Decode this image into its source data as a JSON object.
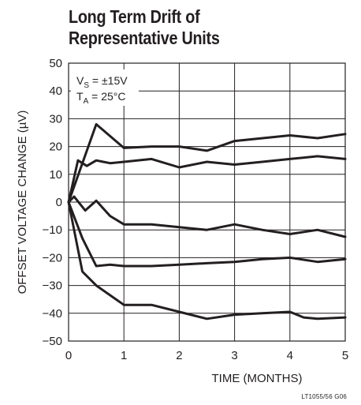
{
  "chart_data": {
    "type": "line",
    "title_lines": [
      "Long Term Drift of",
      "Representative Units"
    ],
    "xlabel": "TIME (MONTHS)",
    "ylabel": "OFFSET VOLTAGE CHANGE (µV)",
    "xlim": [
      0,
      5
    ],
    "ylim": [
      -50,
      50
    ],
    "xticks": [
      0,
      1,
      2,
      3,
      4,
      5
    ],
    "yticks": [
      50,
      40,
      30,
      20,
      10,
      0,
      -10,
      -20,
      -30,
      -40,
      -50
    ],
    "xtick_labels": [
      "0",
      "1",
      "2",
      "3",
      "4",
      "5"
    ],
    "ytick_labels": [
      "50",
      "40",
      "30",
      "20",
      "10",
      "0",
      "−10",
      "−20",
      "−30",
      "−40",
      "−50"
    ],
    "grid": true,
    "annotation": {
      "line1_main": "V",
      "line1_sub": "S",
      "line1_rest": " = ±15V",
      "line2_main": "T",
      "line2_sub": "A",
      "line2_rest": " = 25°C"
    },
    "series": [
      {
        "x": [
          0,
          0.5,
          1,
          1.5,
          2,
          2.5,
          3,
          4,
          4.5,
          5
        ],
        "values": [
          0,
          28,
          19.5,
          20,
          20,
          18.5,
          22,
          24,
          23,
          24.5
        ]
      },
      {
        "x": [
          0,
          0.17,
          0.33,
          0.5,
          0.75,
          1,
          1.5,
          2,
          2.5,
          3,
          3.5,
          4,
          4.5,
          5
        ],
        "values": [
          0,
          15,
          13,
          15,
          14,
          14.5,
          15.5,
          12.5,
          14.5,
          13.5,
          14.5,
          15.5,
          16.5,
          15.5
        ]
      },
      {
        "x": [
          0,
          0.1,
          0.3,
          0.5,
          0.75,
          1,
          1.5,
          2,
          2.5,
          3,
          3.5,
          4,
          4.5,
          5
        ],
        "values": [
          0,
          2,
          -3,
          0.5,
          -5,
          -8,
          -8,
          -9,
          -10,
          -8,
          -10,
          -11.5,
          -10,
          -12.5
        ]
      },
      {
        "x": [
          0,
          0.25,
          0.5,
          0.75,
          1,
          1.5,
          2,
          2.5,
          3,
          3.5,
          4,
          4.5,
          5
        ],
        "values": [
          0,
          -13,
          -23,
          -22.5,
          -23,
          -23,
          -22.5,
          -22,
          -21.5,
          -20.5,
          -20,
          -21.5,
          -20.5
        ]
      },
      {
        "x": [
          0,
          0.25,
          0.5,
          1,
          1.5,
          2,
          2.5,
          3,
          3.5,
          4,
          4.25,
          4.5,
          5
        ],
        "values": [
          0,
          -25,
          -30,
          -37,
          -37,
          -39.5,
          -42,
          -40.5,
          -40,
          -39.5,
          -41.5,
          -42,
          -41.5
        ]
      }
    ]
  },
  "figure_id": "LT1055/56 G06"
}
